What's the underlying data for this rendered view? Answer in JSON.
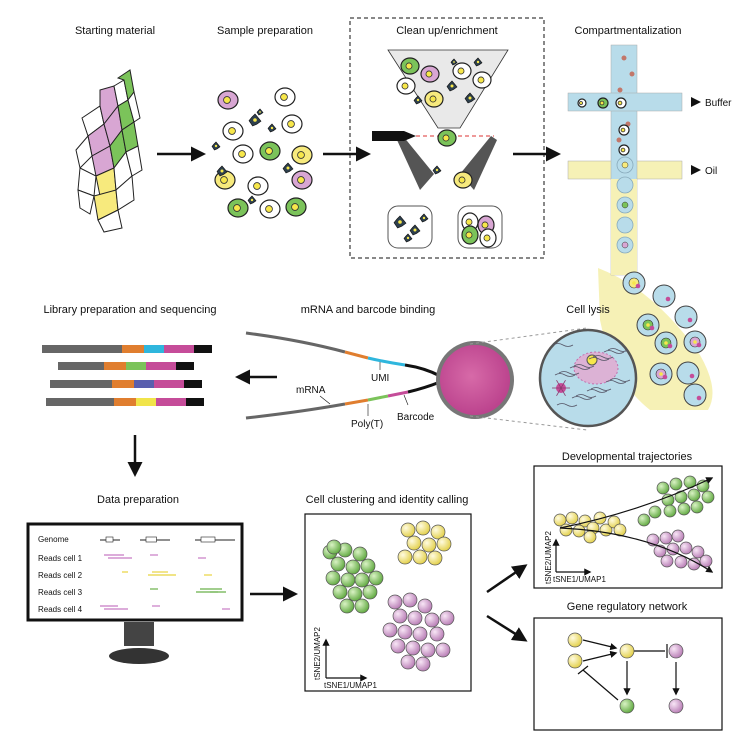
{
  "panels": {
    "starting_material": "Starting material",
    "sample_preparation": "Sample preparation",
    "cleanup": "Clean up/enrichment",
    "compartmentalization": "Compartmentalization",
    "library": "Library preparation and sequencing",
    "binding": "mRNA and barcode binding",
    "lysis": "Cell lysis",
    "data_prep": "Data preparation",
    "clustering": "Cell clustering and identity calling",
    "trajectories": "Developmental trajectories",
    "grn": "Gene regulatory network"
  },
  "labels": {
    "buffer": "Buffer",
    "oil": "Oil",
    "mrna": "mRNA",
    "umi": "UMI",
    "polyt": "Poly(T)",
    "barcode": "Barcode",
    "genome": "Genome",
    "reads1": "Reads cell 1",
    "reads2": "Reads cell 2",
    "reads3": "Reads cell 3",
    "reads4": "Reads cell 4",
    "axis_y": "tSNE2/UMAP2",
    "axis_x": "tSNE1/UMAP1"
  },
  "colors": {
    "green": "#7bc35a",
    "pink": "#d59fd2",
    "yellow": "#f7ea7d",
    "blue": "#b8dcea",
    "oil_yellow": "#f6f1b6",
    "magenta": "#c54c99",
    "orange": "#e07e2f",
    "cyan": "#2fb6dd",
    "gray": "#666666",
    "dark": "#2d3f4d"
  }
}
